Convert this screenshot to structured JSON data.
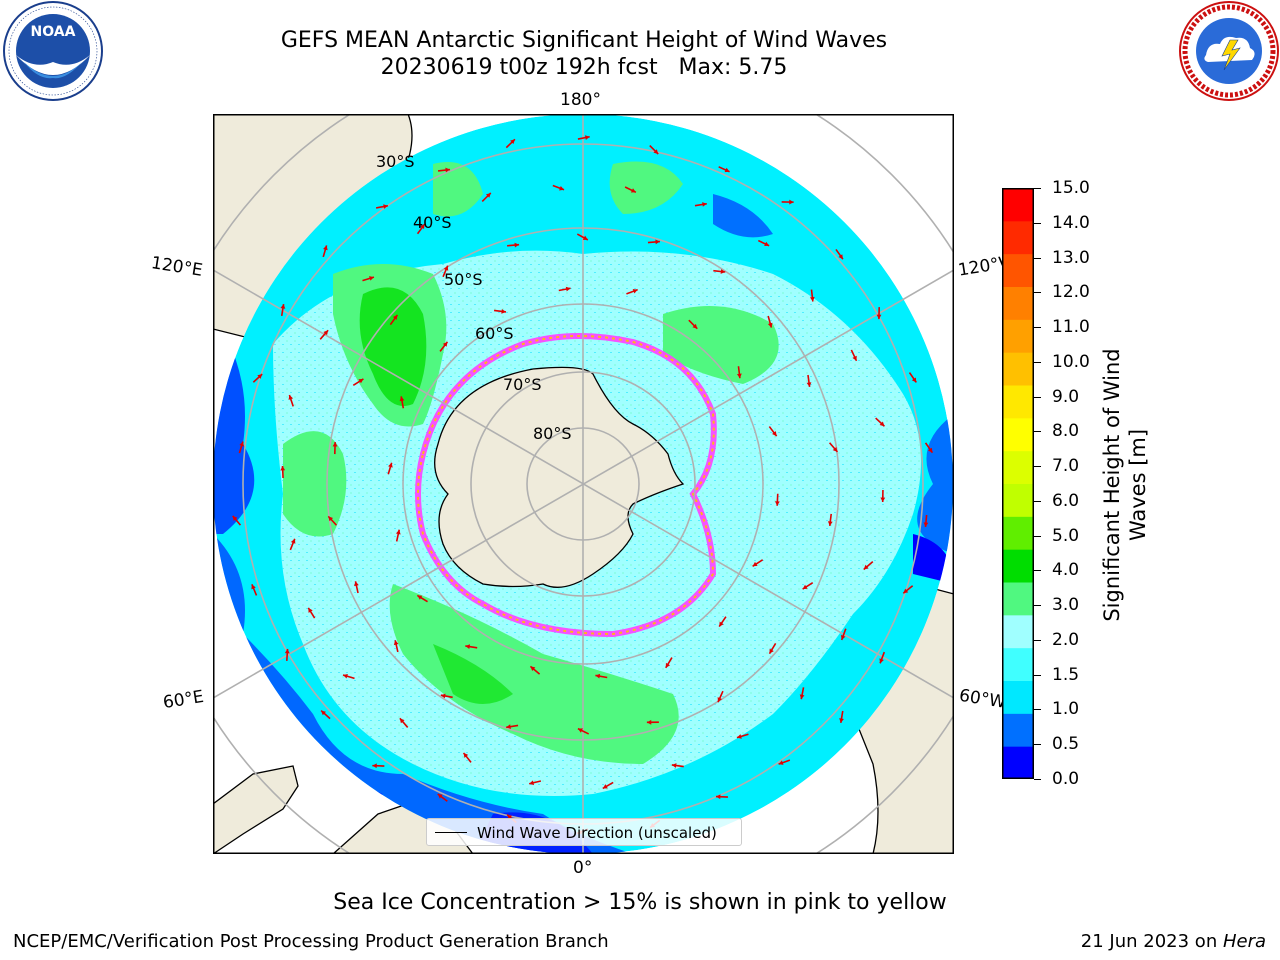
{
  "title": {
    "line1": "GEFS MEAN Antarctic Significant Height of Wind Waves",
    "line2": "20230619 t00z 192h fcst   Max: 5.75"
  },
  "logos": {
    "left": "NOAA",
    "right": "NATIONAL WEATHER SERVICE"
  },
  "map": {
    "projection": "south-polar-stereographic",
    "longitude_labels": {
      "top": "180°",
      "bottom": "0°",
      "upper_left": "120°E",
      "upper_right": "120°W",
      "lower_left": "60°E",
      "lower_right": "60°W"
    },
    "latitude_labels": [
      "30°S",
      "40°S",
      "50°S",
      "60°S",
      "70°S",
      "80°S"
    ],
    "legend": {
      "label": "Wind Wave Direction (unscaled)"
    },
    "colors": {
      "land": "#efebdb",
      "ice_interior": "#ffffff",
      "arrow": "#e00000",
      "grid": "#b0b0b0"
    }
  },
  "colorbar": {
    "title_line1": "Significant Height of Wind",
    "title_line2": "Waves [m]",
    "ticks": [
      "0.0",
      "0.5",
      "1.0",
      "1.5",
      "2.0",
      "3.0",
      "4.0",
      "5.0",
      "6.0",
      "7.0",
      "8.0",
      "9.0",
      "10.0",
      "11.0",
      "12.0",
      "13.0",
      "14.0",
      "15.0"
    ],
    "colors": [
      "#0000ff",
      "#0070ff",
      "#00e8ff",
      "#40ffff",
      "#a0ffff",
      "#50f880",
      "#00dd00",
      "#60ee00",
      "#c0ff00",
      "#dcff00",
      "#ffff00",
      "#ffe800",
      "#ffc000",
      "#ffa000",
      "#ff8000",
      "#ff5500",
      "#ff2a00",
      "#ff0000"
    ]
  },
  "note": "Sea Ice Concentration > 15% is shown in pink to yellow",
  "footer": {
    "left": "NCEP/EMC/Verification Post Processing Product Generation Branch",
    "right_date": "21 Jun 2023 on ",
    "right_machine": "Hera"
  }
}
